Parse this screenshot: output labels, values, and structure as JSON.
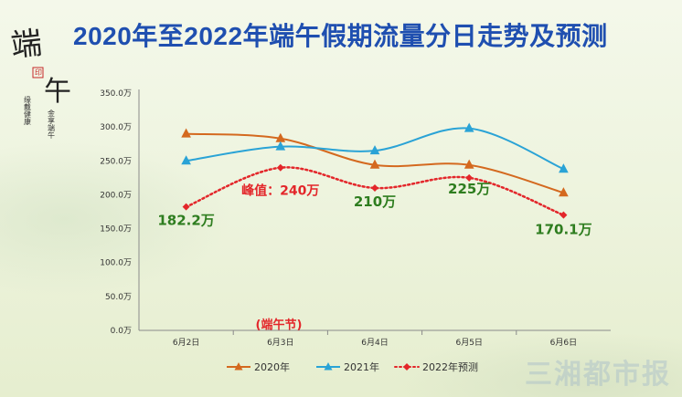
{
  "title": "2020年至2022年端午假期流量分日走势及预测",
  "logo": {
    "char1": "端",
    "char2": "午",
    "seal": "印",
    "poem1": "缘戴健康",
    "poem2": "金享端午"
  },
  "watermark": "三湘都市报",
  "annotations": {
    "holiday": "(端午节)"
  },
  "colors": {
    "s2020": "#d4691f",
    "s2021": "#2aa3d6",
    "s2022": "#e3262a",
    "label_green": "#2e7d1f",
    "label_red": "#e3262a",
    "title": "#1f4fb0"
  },
  "chart_data": {
    "type": "line",
    "x": [
      "6月2日",
      "6月3日",
      "6月4日",
      "6月5日",
      "6月6日"
    ],
    "yticks": [
      "0.0万",
      "50.0万",
      "100.0万",
      "150.0万",
      "200.0万",
      "250.0万",
      "300.0万",
      "350.0万"
    ],
    "ylim": [
      0,
      350
    ],
    "grid": false,
    "legend_position": "bottom",
    "series": [
      {
        "name": "2020年",
        "values": [
          290,
          283,
          244,
          244,
          203
        ],
        "marker": "triangle",
        "dash": "solid"
      },
      {
        "name": "2021年",
        "values": [
          250,
          271,
          265,
          298,
          238
        ],
        "marker": "triangle",
        "dash": "solid"
      },
      {
        "name": "2022年预测",
        "values": [
          182.2,
          240,
          210,
          225,
          170.1
        ],
        "marker": "diamond",
        "dash": "dotted"
      }
    ],
    "data_labels": [
      "182.2万",
      "峰值：240万",
      "210万",
      "225万",
      "170.1万"
    ]
  }
}
